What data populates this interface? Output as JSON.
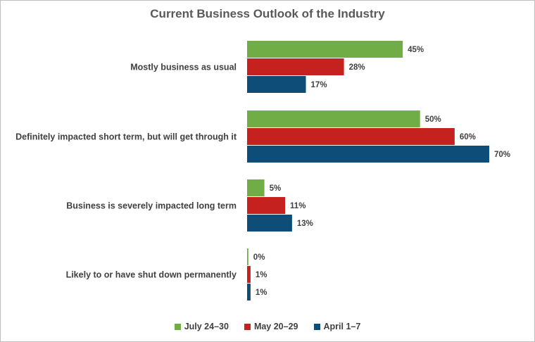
{
  "chart_data": {
    "type": "bar",
    "orientation": "horizontal",
    "title": "Current Business Outlook of the Industry",
    "categories": [
      "Mostly business as usual",
      "Definitely impacted short term, but will get through it",
      "Business is severely impacted long term",
      "Likely to or have shut down permanently"
    ],
    "series": [
      {
        "name": "July 24–30",
        "color": "#70ad47",
        "values": [
          45,
          50,
          5,
          0
        ],
        "labels": [
          "45%",
          "50%",
          "5%",
          "0%"
        ]
      },
      {
        "name": "May 20–29",
        "color": "#c5221f",
        "values": [
          28,
          60,
          11,
          1
        ],
        "labels": [
          "28%",
          "60%",
          "11%",
          "1%"
        ]
      },
      {
        "name": "April 1–7",
        "color": "#0d4d78",
        "values": [
          17,
          70,
          13,
          1
        ],
        "labels": [
          "17%",
          "70%",
          "13%",
          "1%"
        ]
      }
    ],
    "xlim": [
      0,
      70
    ],
    "grid": false,
    "legend_position": "bottom"
  }
}
